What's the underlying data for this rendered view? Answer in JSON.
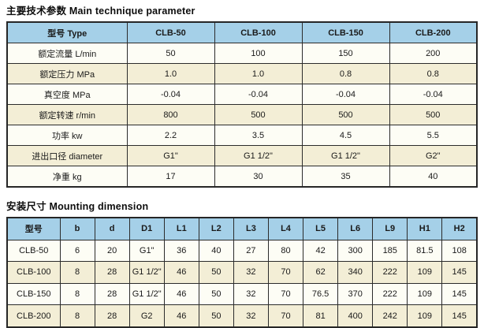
{
  "colors": {
    "header_bg": "#a5d0e8",
    "row_cream": "#f3eed6",
    "row_light": "#fdfdf5",
    "border": "#2b2b2b"
  },
  "sections": {
    "technique": {
      "title": "主要技术参数 Main technique parameter",
      "table": {
        "columns": [
          "型号 Type",
          "CLB-50",
          "CLB-100",
          "CLB-150",
          "CLB-200"
        ],
        "rows": [
          {
            "label": "额定流量 L/min",
            "values": [
              "50",
              "100",
              "150",
              "200"
            ]
          },
          {
            "label": "额定压力 MPa",
            "values": [
              "1.0",
              "1.0",
              "0.8",
              "0.8"
            ]
          },
          {
            "label": "真空度 MPa",
            "values": [
              "-0.04",
              "-0.04",
              "-0.04",
              "-0.04"
            ]
          },
          {
            "label": "额定转速 r/min",
            "values": [
              "800",
              "500",
              "500",
              "500"
            ]
          },
          {
            "label": "功率 kw",
            "values": [
              "2.2",
              "3.5",
              "4.5",
              "5.5"
            ]
          },
          {
            "label": "进出口径 diameter",
            "values": [
              "G1\"",
              "G1 1/2\"",
              "G1 1/2\"",
              "G2\""
            ]
          },
          {
            "label": "净重 kg",
            "values": [
              "17",
              "30",
              "35",
              "40"
            ]
          }
        ]
      }
    },
    "mounting": {
      "title": "安装尺寸 Mounting dimension",
      "table": {
        "columns": [
          "型号",
          "b",
          "d",
          "D1",
          "L1",
          "L2",
          "L3",
          "L4",
          "L5",
          "L6",
          "L9",
          "H1",
          "H2"
        ],
        "rows": [
          [
            "CLB-50",
            "6",
            "20",
            "G1\"",
            "36",
            "40",
            "27",
            "80",
            "42",
            "300",
            "185",
            "81.5",
            "108"
          ],
          [
            "CLB-100",
            "8",
            "28",
            "G1 1/2\"",
            "46",
            "50",
            "32",
            "70",
            "62",
            "340",
            "222",
            "109",
            "145"
          ],
          [
            "CLB-150",
            "8",
            "28",
            "G1 1/2\"",
            "46",
            "50",
            "32",
            "70",
            "76.5",
            "370",
            "222",
            "109",
            "145"
          ],
          [
            "CLB-200",
            "8",
            "28",
            "G2",
            "46",
            "50",
            "32",
            "70",
            "81",
            "400",
            "242",
            "109",
            "145"
          ]
        ]
      }
    }
  }
}
